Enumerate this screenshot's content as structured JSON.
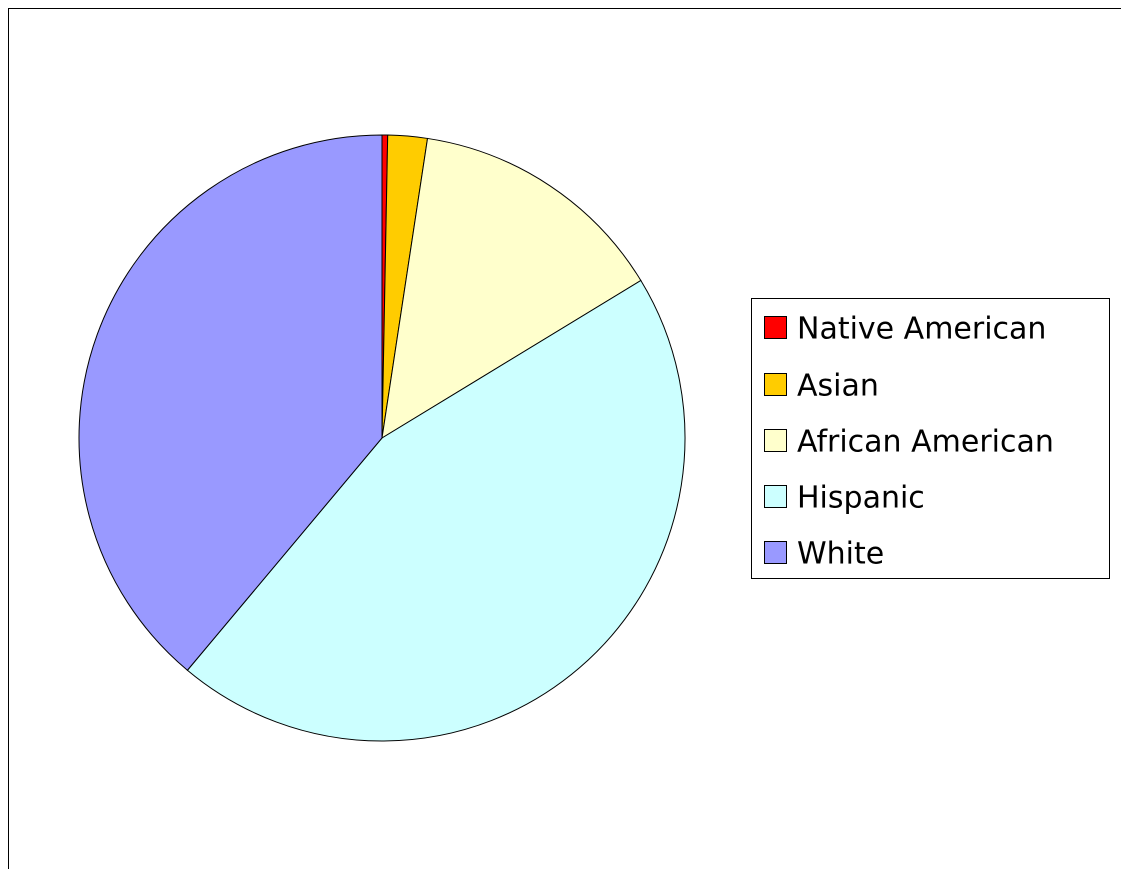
{
  "chart_data": {
    "type": "pie",
    "categories": [
      "Native American",
      "Asian",
      "African American",
      "Hispanic",
      "White"
    ],
    "values": [
      0.3,
      2.1,
      13.9,
      44.8,
      38.9
    ],
    "colors": [
      "#ff0000",
      "#ffcc00",
      "#ffffcc",
      "#ccffff",
      "#9999ff"
    ],
    "legend": "right"
  }
}
